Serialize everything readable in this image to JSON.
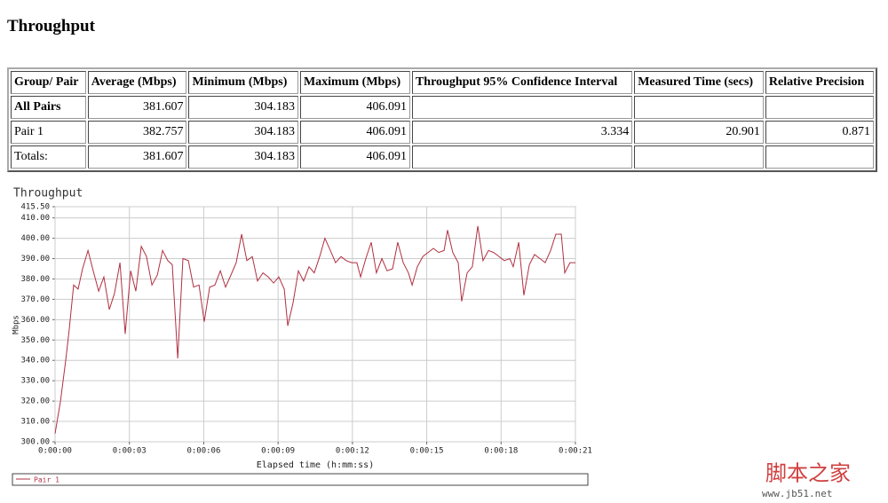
{
  "title": "Throughput",
  "table": {
    "headers": [
      "Group/ Pair",
      "Average (Mbps)",
      "Minimum (Mbps)",
      "Maximum (Mbps)",
      "Throughput 95% Confidence Interval",
      "Measured Time (secs)",
      "Relative Precision"
    ],
    "rows": [
      [
        "All Pairs",
        "381.607",
        "304.183",
        "406.091"
      ],
      [
        "Pair 1",
        "382.757",
        "304.183",
        "406.091",
        "3.334",
        "20.901",
        "0.871"
      ],
      [
        "Totals:",
        "381.607",
        "304.183",
        "406.091"
      ]
    ]
  },
  "chart_data": {
    "type": "line",
    "title": "Throughput",
    "x_label": "Elapsed time (h:mm:ss)",
    "y_label": "Mbps",
    "grid": true,
    "xlim": [
      0,
      21
    ],
    "xticks": [
      {
        "value": 0,
        "label": "0:00:00"
      },
      {
        "value": 3,
        "label": "0:00:03"
      },
      {
        "value": 6,
        "label": "0:00:06"
      },
      {
        "value": 9,
        "label": "0:00:09"
      },
      {
        "value": 12,
        "label": "0:00:12"
      },
      {
        "value": 15,
        "label": "0:00:15"
      },
      {
        "value": 18,
        "label": "0:00:18"
      },
      {
        "value": 21,
        "label": "0:00:21"
      }
    ],
    "ylim": [
      300,
      415.5
    ],
    "yticks": [
      {
        "value": 300,
        "label": "300.00"
      },
      {
        "value": 310,
        "label": "310.00"
      },
      {
        "value": 320,
        "label": "320.00"
      },
      {
        "value": 330,
        "label": "330.00"
      },
      {
        "value": 340,
        "label": "340.00"
      },
      {
        "value": 350,
        "label": "350.00"
      },
      {
        "value": 360,
        "label": "360.00"
      },
      {
        "value": 370,
        "label": "370.00"
      },
      {
        "value": 380,
        "label": "380.00"
      },
      {
        "value": 390,
        "label": "390.00"
      },
      {
        "value": 400,
        "label": "400.00"
      },
      {
        "value": 410,
        "label": "410.00"
      },
      {
        "value": 415.5,
        "label": "415.50"
      }
    ],
    "x": [
      0,
      0.22,
      0.43,
      0.57,
      0.75,
      0.93,
      1.11,
      1.33,
      1.54,
      1.76,
      1.97,
      2.19,
      2.4,
      2.62,
      2.83,
      3.05,
      3.26,
      3.48,
      3.69,
      3.91,
      4.13,
      4.34,
      4.55,
      4.73,
      4.95,
      5.16,
      5.38,
      5.59,
      5.81,
      6.02,
      6.24,
      6.45,
      6.67,
      6.88,
      7.1,
      7.31,
      7.53,
      7.74,
      7.96,
      8.17,
      8.39,
      8.6,
      8.82,
      9.03,
      9.25,
      9.39,
      9.6,
      9.82,
      10.03,
      10.25,
      10.46,
      10.68,
      10.89,
      11.11,
      11.32,
      11.54,
      11.75,
      11.97,
      12.18,
      12.33,
      12.54,
      12.76,
      12.97,
      13.19,
      13.4,
      13.62,
      13.83,
      14.05,
      14.26,
      14.41,
      14.62,
      14.84,
      15.05,
      15.27,
      15.48,
      15.7,
      15.84,
      16.05,
      16.27,
      16.41,
      16.63,
      16.84,
      17.06,
      17.27,
      17.49,
      17.7,
      17.92,
      18.13,
      18.35,
      18.49,
      18.71,
      18.92,
      19.14,
      19.35,
      19.57,
      19.78,
      20.0,
      20.21,
      20.43,
      20.57,
      20.78,
      21.0
    ],
    "series": [
      {
        "name": "Pair 1",
        "color": "#b03040",
        "values": [
          304,
          320,
          340,
          355,
          377,
          375,
          385,
          394,
          384,
          374,
          381,
          365,
          373,
          388,
          353,
          384,
          374,
          396,
          391,
          377,
          382,
          394,
          389,
          387,
          341,
          390,
          389,
          376,
          377,
          359,
          376,
          377,
          384,
          376,
          382,
          388,
          402,
          389,
          391,
          379,
          383,
          381,
          378,
          381,
          375,
          357,
          368,
          384,
          379,
          386,
          383,
          391,
          400,
          394,
          388,
          391,
          389,
          388,
          388,
          381,
          390,
          398,
          383,
          390,
          384,
          385,
          398,
          388,
          383,
          377,
          386,
          391,
          393,
          395,
          393,
          394,
          404,
          393,
          388,
          369,
          383,
          386,
          406,
          389,
          394,
          393,
          391,
          389,
          390,
          386,
          398,
          372,
          387,
          392,
          390,
          388,
          394,
          402,
          402,
          383,
          388,
          388
        ]
      }
    ]
  },
  "watermark": {
    "name": "脚本之家",
    "url": "www.jb51.net"
  }
}
